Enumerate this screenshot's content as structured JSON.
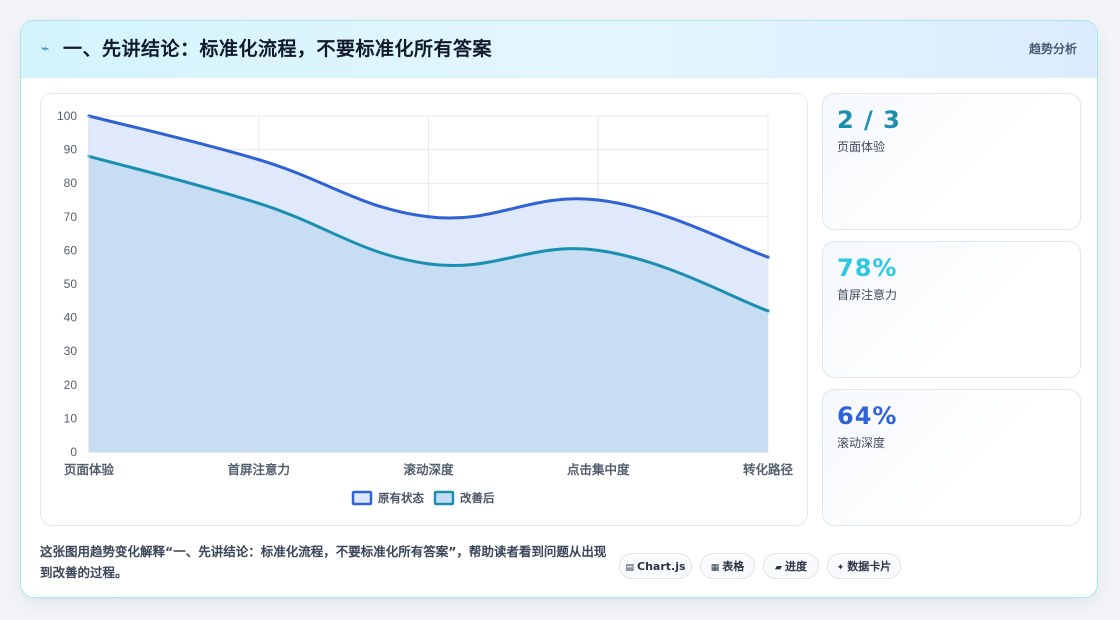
{
  "header": {
    "title": "一、先讲结论：标准化流程，不要标准化所有答案",
    "badge": "趋势分析",
    "icon": "lightning-icon"
  },
  "chart_data": {
    "type": "area",
    "categories": [
      "页面体验",
      "首屏注意力",
      "滚动深度",
      "点击集中度",
      "转化路径"
    ],
    "series": [
      {
        "name": "原有状态",
        "values": [
          100,
          87,
          70,
          75,
          58
        ],
        "color": "#2f62d4",
        "fill": "#dde7fb"
      },
      {
        "name": "改善后",
        "values": [
          88,
          74,
          56,
          60,
          42
        ],
        "color": "#1b8fb0",
        "fill": "#c4dcf2"
      }
    ],
    "ylim": [
      0,
      100
    ],
    "yticks": [
      0,
      10,
      20,
      30,
      40,
      50,
      60,
      70,
      80,
      90,
      100
    ],
    "grid": true,
    "legend": "bottom"
  },
  "stats": [
    {
      "value": "2 / 3",
      "label": "页面体验",
      "color": "#1b8fb0"
    },
    {
      "value": "78%",
      "label": "首屏注意力",
      "color": "#2ec8e4"
    },
    {
      "value": "64%",
      "label": "滚动深度",
      "color": "#2f62d4"
    }
  ],
  "caption": "这张图用趋势变化解释“一、先讲结论：标准化流程，不要标准化所有答案”，帮助读者看到问题从出现到改善的过程。",
  "chips": [
    {
      "label": "Chart.js",
      "icon": "chart-icon"
    },
    {
      "label": "表格",
      "icon": "table-icon"
    },
    {
      "label": "进度",
      "icon": "progress-icon"
    },
    {
      "label": "数据卡片",
      "icon": "sparkle-icon"
    }
  ]
}
